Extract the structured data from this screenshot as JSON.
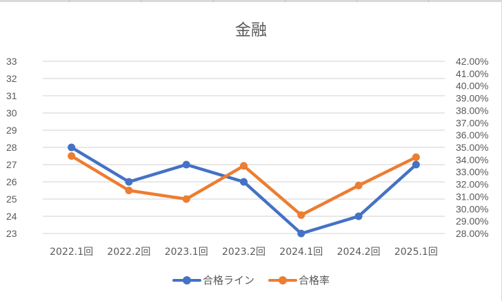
{
  "chart_data": {
    "type": "line",
    "title": "金融",
    "categories": [
      "2022.1回",
      "2022.2回",
      "2023.1回",
      "2023.2回",
      "2024.1回",
      "2024.2回",
      "2025.1回"
    ],
    "series": [
      {
        "name": "合格ライン",
        "axis": "left",
        "color": "#4472C4",
        "values": [
          28,
          26,
          27,
          26,
          23,
          24,
          27
        ]
      },
      {
        "name": "合格率",
        "axis": "right",
        "color": "#ED7D31",
        "values": [
          34.3,
          31.5,
          30.8,
          33.5,
          29.5,
          31.9,
          34.2
        ]
      }
    ],
    "y_left": {
      "min": 23,
      "max": 33,
      "step": 1,
      "ticks": [
        "33",
        "32",
        "31",
        "30",
        "29",
        "28",
        "27",
        "26",
        "25",
        "24",
        "23"
      ]
    },
    "y_right": {
      "min": 28,
      "max": 42,
      "step": 1,
      "unit": "%",
      "ticks": [
        "42.00%",
        "41.00%",
        "40.00%",
        "39.00%",
        "38.00%",
        "37.00%",
        "36.00%",
        "35.00%",
        "34.00%",
        "33.00%",
        "32.00%",
        "31.00%",
        "30.00%",
        "29.00%",
        "28.00%"
      ]
    },
    "xlabel": "",
    "ylabel": "",
    "grid": true,
    "legend_position": "bottom"
  },
  "legend": {
    "items": [
      {
        "label": "合格ライン",
        "color": "#4472C4"
      },
      {
        "label": "合格率",
        "color": "#ED7D31"
      }
    ]
  }
}
